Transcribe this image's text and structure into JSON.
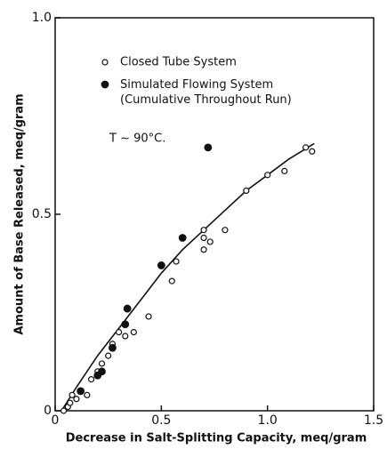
{
  "chart_data": {
    "type": "scatter",
    "xlabel": "Decrease in Salt-Splitting Capacity, meq/gram",
    "ylabel": "Amount of Base Released, meq/gram",
    "annotation": "T ~ 90°C.",
    "xlim": [
      0,
      1.5
    ],
    "ylim": [
      0,
      1
    ],
    "xticks": [
      0,
      0.5,
      {
        "value": 1,
        "label": "1.0"
      },
      1.5
    ],
    "yticks": [
      0,
      0.5,
      {
        "value": 1,
        "label": "1.0"
      }
    ],
    "color": "#111111",
    "series": [
      {
        "name": "Closed Tube System",
        "marker": "open",
        "x": [
          0.04,
          0.06,
          0.07,
          0.08,
          0.1,
          0.12,
          0.15,
          0.17,
          0.2,
          0.22,
          0.25,
          0.27,
          0.3,
          0.33,
          0.37,
          0.44,
          0.55,
          0.57,
          0.7,
          0.7,
          0.7,
          0.73,
          0.8,
          0.9,
          1.0,
          1.08,
          1.18,
          1.21
        ],
        "values": [
          0,
          0.01,
          0.02,
          0.04,
          0.03,
          0.05,
          0.04,
          0.08,
          0.1,
          0.12,
          0.14,
          0.17,
          0.2,
          0.19,
          0.2,
          0.24,
          0.33,
          0.38,
          0.41,
          0.44,
          0.46,
          0.43,
          0.46,
          0.56,
          0.6,
          0.61,
          0.67,
          0.66
        ]
      },
      {
        "name": "Simulated Flowing System\n(Cumulative Throughout Run)",
        "marker": "filled",
        "x": [
          0.12,
          0.2,
          0.22,
          0.27,
          0.33,
          0.34,
          0.5,
          0.6,
          0.72
        ],
        "values": [
          0.05,
          0.09,
          0.1,
          0.16,
          0.22,
          0.26,
          0.37,
          0.44,
          0.67
        ]
      }
    ],
    "curve": {
      "x": [
        0.03,
        0.1,
        0.2,
        0.3,
        0.4,
        0.5,
        0.6,
        0.7,
        0.8,
        0.9,
        1.0,
        1.1,
        1.22
      ],
      "values": [
        0,
        0.06,
        0.14,
        0.21,
        0.28,
        0.35,
        0.41,
        0.46,
        0.51,
        0.56,
        0.6,
        0.64,
        0.68
      ]
    }
  }
}
